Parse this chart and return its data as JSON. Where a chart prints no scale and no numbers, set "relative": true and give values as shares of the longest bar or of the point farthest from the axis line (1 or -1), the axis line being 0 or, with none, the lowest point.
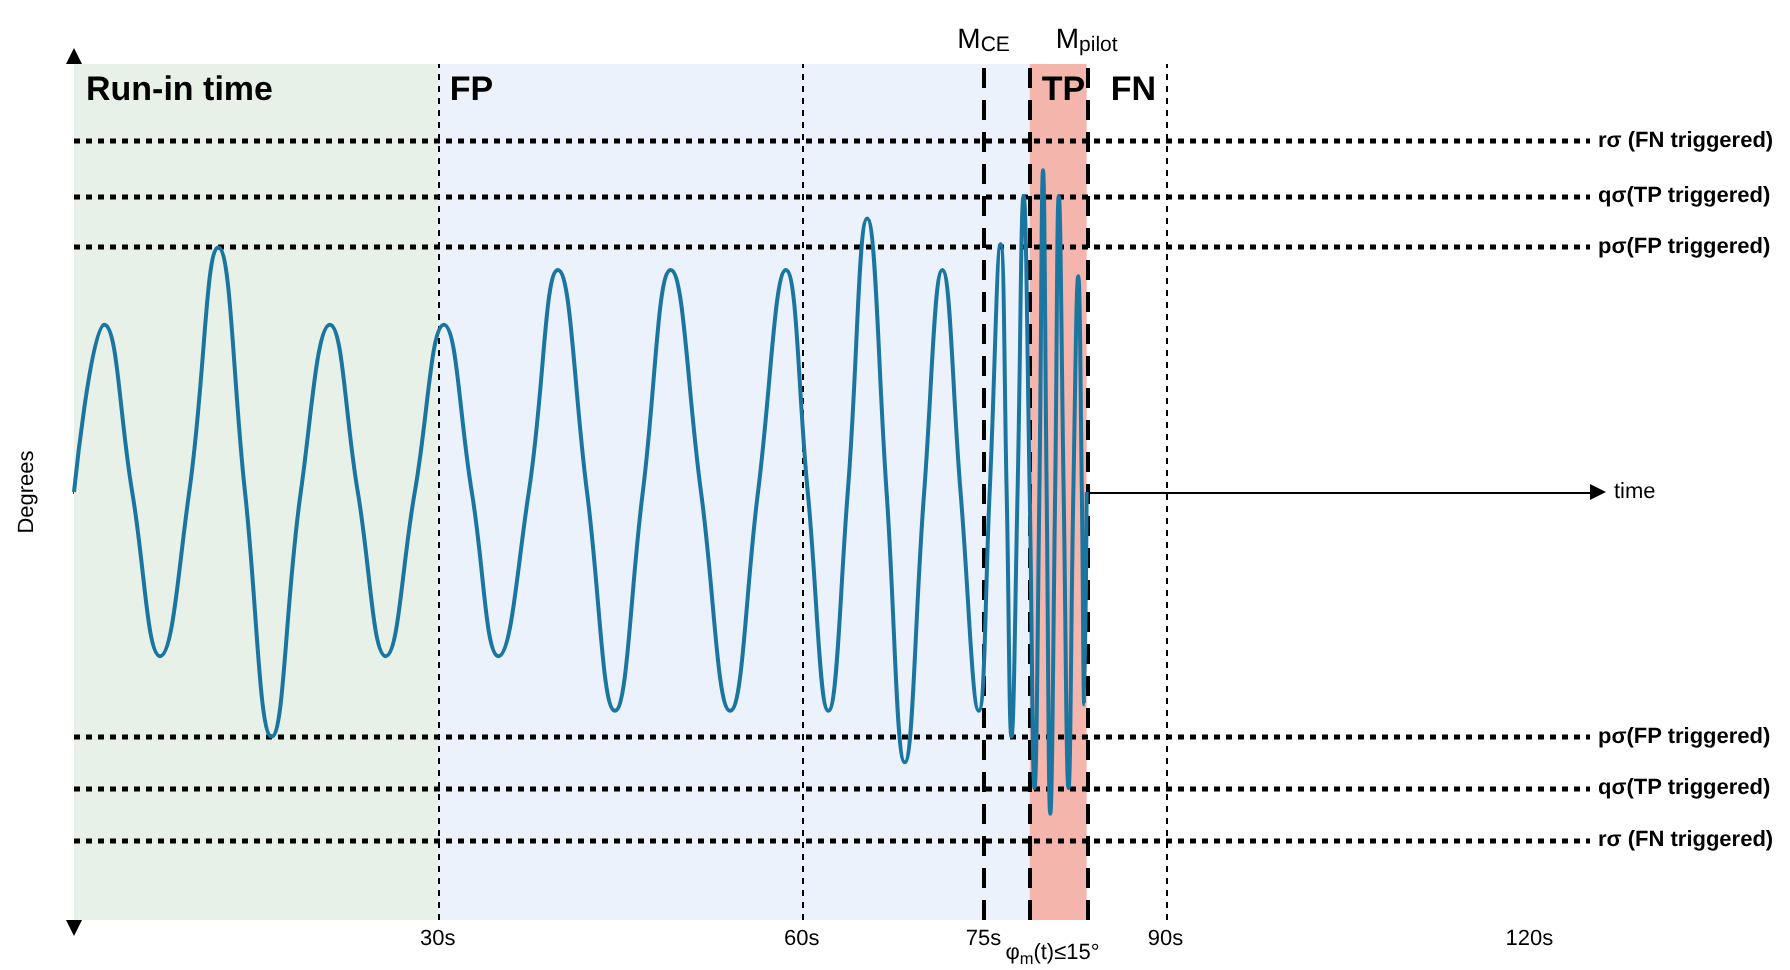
{
  "chart_data": {
    "type": "line",
    "relative": true,
    "xlabel": "time",
    "ylabel": "Degrees",
    "marker": "none",
    "xlim": [
      0,
      125
    ],
    "xticks": [
      {
        "value": 30,
        "label": "30s"
      },
      {
        "value": 60,
        "label": "60s"
      },
      {
        "value": 75,
        "label": "75s"
      },
      {
        "value": 90,
        "label": "90s"
      },
      {
        "value": 120,
        "label": "120s"
      }
    ],
    "series": [
      {
        "color": "#1a76a0",
        "x": [
          0,
          2.5,
          4.8,
          7.1,
          9.5,
          11.9,
          14.1,
          16.3,
          18.7,
          21.1,
          23.4,
          25.7,
          28.1,
          30.5,
          32.8,
          35,
          37.5,
          39.9,
          42.3,
          44.6,
          46.9,
          49.2,
          51.7,
          54.1,
          56.4,
          58.7,
          60.5,
          62.2,
          63.8,
          65.4,
          67,
          68.5,
          70.1,
          71.6,
          73.1,
          74.6,
          75.5,
          76.4,
          76.9,
          77.3,
          77.8,
          78.3,
          78.8,
          79.2,
          79.6,
          79.9,
          80.2,
          80.5,
          80.9,
          81.2,
          81.6,
          82,
          82.4,
          82.8,
          83.1,
          83.3,
          83.5
        ],
        "values": [
          0,
          0.52,
          0,
          -0.51,
          0,
          0.76,
          0,
          -0.76,
          0,
          0.52,
          0,
          -0.51,
          0,
          0.52,
          0,
          -0.51,
          0,
          0.69,
          0,
          -0.68,
          0,
          0.69,
          0,
          -0.68,
          0,
          0.69,
          0,
          -0.68,
          0,
          0.85,
          0,
          -0.84,
          0,
          0.69,
          0,
          -0.68,
          0,
          0.77,
          0,
          -0.76,
          0,
          0.92,
          0,
          -0.92,
          0,
          1,
          0,
          -1,
          0,
          0.92,
          0,
          -0.92,
          0,
          0.67,
          0,
          -0.66,
          0
        ]
      }
    ],
    "bands": [
      {
        "axis": "x",
        "from": 0,
        "to": 30,
        "label": "Run-in time",
        "color": "#e8f1e7"
      },
      {
        "axis": "x",
        "from": 30,
        "to": 78.8,
        "label": "FP",
        "color": "#ebf2fc"
      },
      {
        "axis": "x",
        "from": 78.8,
        "to": 83.5,
        "label": "TP",
        "color": "#f4b5ad"
      }
    ],
    "ref_lines": [
      {
        "axis": "y",
        "value": 1.09,
        "label": "rσ (FN triggered)",
        "line_style": "dotted",
        "color": "#000000"
      },
      {
        "axis": "y",
        "value": 0.92,
        "label": "qσ(TP triggered)",
        "line_style": "dotted",
        "color": "#000000"
      },
      {
        "axis": "y",
        "value": 0.76,
        "label": "pσ(FP triggered)",
        "line_style": "dotted",
        "color": "#000000"
      },
      {
        "axis": "y",
        "value": -0.76,
        "label": "pσ(FP triggered)",
        "line_style": "dotted",
        "color": "#000000"
      },
      {
        "axis": "y",
        "value": -0.92,
        "label": "qσ(TP triggered)",
        "line_style": "dotted",
        "color": "#000000"
      },
      {
        "axis": "y",
        "value": -1.08,
        "label": "rσ (FN triggered)",
        "line_style": "dotted",
        "color": "#000000"
      },
      {
        "axis": "x",
        "value": 30,
        "label": null,
        "line_style": "dotted",
        "color": "#000000"
      },
      {
        "axis": "x",
        "value": 60,
        "label": null,
        "line_style": "dotted",
        "color": "#000000"
      },
      {
        "axis": "x",
        "value": 90,
        "label": null,
        "line_style": "dotted",
        "color": "#000000"
      },
      {
        "axis": "x",
        "value": 75,
        "label": "M$_{CE}$",
        "line_style": "dashed",
        "color": "#000000"
      },
      {
        "axis": "x",
        "value": 78.8,
        "label": null,
        "line_style": "dashed",
        "color": "#000000"
      },
      {
        "axis": "x",
        "value": 83.5,
        "label": "M$_{pilot}$",
        "line_style": "dashed",
        "color": "#000000"
      }
    ],
    "annotations": [
      "φ$_{m}$(t)≤15°",
      "FN"
    ]
  }
}
